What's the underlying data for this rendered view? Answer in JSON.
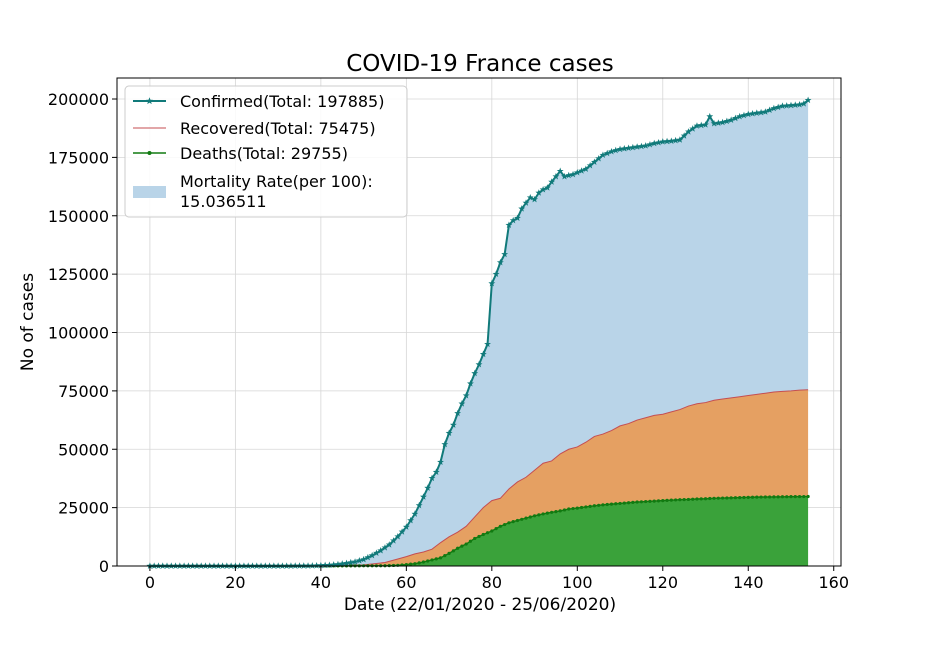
{
  "chart_data": {
    "type": "area",
    "title": "COVID-19 France cases",
    "xlabel": "Date (22/01/2020 - 25/06/2020)",
    "ylabel": "No of cases",
    "xlim": [
      -7.7,
      161.7
    ],
    "ylim": [
      0,
      209000
    ],
    "xticks": [
      0,
      20,
      40,
      60,
      80,
      100,
      120,
      140,
      160
    ],
    "yticks": [
      0,
      25000,
      50000,
      75000,
      100000,
      125000,
      150000,
      175000,
      200000
    ],
    "grid": true,
    "legend_position": "upper-left",
    "series": [
      {
        "key": "confirmed",
        "name": "Confirmed(Total: 197885)",
        "color": "#117a7a",
        "style": "line-star-markers",
        "fill": "#b9d4e8",
        "points": [
          [
            0,
            0
          ],
          [
            10,
            0
          ],
          [
            20,
            0
          ],
          [
            30,
            0
          ],
          [
            38,
            100
          ],
          [
            42,
            400
          ],
          [
            44,
            700
          ],
          [
            46,
            1200
          ],
          [
            48,
            1800
          ],
          [
            50,
            2800
          ],
          [
            52,
            4500
          ],
          [
            54,
            6600
          ],
          [
            56,
            9100
          ],
          [
            58,
            12600
          ],
          [
            60,
            16700
          ],
          [
            62,
            22300
          ],
          [
            64,
            29600
          ],
          [
            65,
            33400
          ],
          [
            66,
            37600
          ],
          [
            67,
            40200
          ],
          [
            68,
            44500
          ],
          [
            69,
            52100
          ],
          [
            70,
            56900
          ],
          [
            71,
            60400
          ],
          [
            72,
            65400
          ],
          [
            73,
            69500
          ],
          [
            74,
            73000
          ],
          [
            75,
            78100
          ],
          [
            76,
            82500
          ],
          [
            77,
            86300
          ],
          [
            78,
            90700
          ],
          [
            79,
            95000
          ],
          [
            80,
            121000
          ],
          [
            81,
            125000
          ],
          [
            82,
            130000
          ],
          [
            83,
            133500
          ],
          [
            84,
            146000
          ],
          [
            85,
            148000
          ],
          [
            86,
            149000
          ],
          [
            87,
            153000
          ],
          [
            88,
            155500
          ],
          [
            89,
            157800
          ],
          [
            90,
            157000
          ],
          [
            91,
            159800
          ],
          [
            92,
            161200
          ],
          [
            93,
            162000
          ],
          [
            94,
            164500
          ],
          [
            95,
            166800
          ],
          [
            96,
            169100
          ],
          [
            97,
            166800
          ],
          [
            98,
            167300
          ],
          [
            99,
            167700
          ],
          [
            100,
            168500
          ],
          [
            102,
            170000
          ],
          [
            104,
            173000
          ],
          [
            106,
            176000
          ],
          [
            108,
            177500
          ],
          [
            110,
            178500
          ],
          [
            112,
            179000
          ],
          [
            114,
            179500
          ],
          [
            116,
            180000
          ],
          [
            118,
            181000
          ],
          [
            120,
            181700
          ],
          [
            122,
            182000
          ],
          [
            124,
            182500
          ],
          [
            126,
            186000
          ],
          [
            128,
            188500
          ],
          [
            130,
            189000
          ],
          [
            131,
            192500
          ],
          [
            132,
            189500
          ],
          [
            134,
            190000
          ],
          [
            136,
            191000
          ],
          [
            138,
            192500
          ],
          [
            140,
            193500
          ],
          [
            142,
            194000
          ],
          [
            144,
            194500
          ],
          [
            146,
            196000
          ],
          [
            148,
            197000
          ],
          [
            150,
            197300
          ],
          [
            152,
            197600
          ],
          [
            153,
            198000
          ],
          [
            154,
            199500
          ]
        ]
      },
      {
        "key": "recovered",
        "name": "Recovered(Total: 75475)",
        "color": "#c44e52",
        "style": "thin-line",
        "fill": "#e5a062",
        "points": [
          [
            0,
            0
          ],
          [
            30,
            0
          ],
          [
            50,
            500
          ],
          [
            55,
            1500
          ],
          [
            58,
            3000
          ],
          [
            60,
            4000
          ],
          [
            62,
            5200
          ],
          [
            64,
            6000
          ],
          [
            66,
            7200
          ],
          [
            68,
            10000
          ],
          [
            70,
            12500
          ],
          [
            72,
            14500
          ],
          [
            74,
            17000
          ],
          [
            76,
            21000
          ],
          [
            78,
            25000
          ],
          [
            80,
            28000
          ],
          [
            82,
            29000
          ],
          [
            84,
            33000
          ],
          [
            86,
            36000
          ],
          [
            88,
            38000
          ],
          [
            90,
            41000
          ],
          [
            92,
            44000
          ],
          [
            94,
            45000
          ],
          [
            96,
            48000
          ],
          [
            98,
            50000
          ],
          [
            100,
            51000
          ],
          [
            102,
            53000
          ],
          [
            104,
            55500
          ],
          [
            106,
            56500
          ],
          [
            108,
            58000
          ],
          [
            110,
            60000
          ],
          [
            112,
            61000
          ],
          [
            114,
            62500
          ],
          [
            116,
            63500
          ],
          [
            118,
            64500
          ],
          [
            120,
            65000
          ],
          [
            122,
            66000
          ],
          [
            124,
            67000
          ],
          [
            126,
            68500
          ],
          [
            128,
            69500
          ],
          [
            130,
            70000
          ],
          [
            132,
            71000
          ],
          [
            134,
            71500
          ],
          [
            136,
            72000
          ],
          [
            138,
            72500
          ],
          [
            140,
            73000
          ],
          [
            142,
            73500
          ],
          [
            144,
            74000
          ],
          [
            146,
            74500
          ],
          [
            148,
            74800
          ],
          [
            150,
            75000
          ],
          [
            152,
            75300
          ],
          [
            154,
            75500
          ]
        ]
      },
      {
        "key": "deaths",
        "name": "Deaths(Total: 29755)",
        "color": "#117a11",
        "style": "line-dot-markers",
        "fill": "#3aa23a",
        "points": [
          [
            0,
            0
          ],
          [
            30,
            0
          ],
          [
            55,
            100
          ],
          [
            58,
            300
          ],
          [
            60,
            600
          ],
          [
            62,
            1000
          ],
          [
            64,
            1700
          ],
          [
            66,
            2600
          ],
          [
            68,
            3500
          ],
          [
            70,
            5400
          ],
          [
            72,
            7600
          ],
          [
            74,
            9400
          ],
          [
            76,
            11800
          ],
          [
            78,
            13500
          ],
          [
            80,
            15000
          ],
          [
            82,
            17000
          ],
          [
            84,
            18500
          ],
          [
            86,
            19500
          ],
          [
            88,
            20500
          ],
          [
            90,
            21500
          ],
          [
            92,
            22300
          ],
          [
            94,
            23000
          ],
          [
            96,
            23600
          ],
          [
            98,
            24400
          ],
          [
            100,
            24800
          ],
          [
            102,
            25300
          ],
          [
            104,
            25800
          ],
          [
            106,
            26200
          ],
          [
            108,
            26500
          ],
          [
            110,
            26800
          ],
          [
            112,
            27100
          ],
          [
            114,
            27400
          ],
          [
            116,
            27600
          ],
          [
            118,
            27800
          ],
          [
            120,
            28000
          ],
          [
            122,
            28200
          ],
          [
            124,
            28400
          ],
          [
            126,
            28500
          ],
          [
            128,
            28700
          ],
          [
            130,
            28800
          ],
          [
            132,
            29000
          ],
          [
            134,
            29100
          ],
          [
            136,
            29200
          ],
          [
            138,
            29300
          ],
          [
            140,
            29400
          ],
          [
            142,
            29500
          ],
          [
            144,
            29550
          ],
          [
            146,
            29600
          ],
          [
            148,
            29650
          ],
          [
            150,
            29700
          ],
          [
            152,
            29730
          ],
          [
            154,
            29755
          ]
        ]
      }
    ],
    "legend": [
      {
        "kind": "line-star",
        "color": "#117a7a",
        "text": "Confirmed(Total: 197885)"
      },
      {
        "kind": "thin-line",
        "color": "#c44e52",
        "text": "Recovered(Total: 75475)"
      },
      {
        "kind": "line-dot",
        "color": "#117a11",
        "text": "Deaths(Total: 29755)"
      },
      {
        "kind": "patch",
        "color": "#b9d4e8",
        "text": "Mortality Rate(per 100):",
        "text2": " 15.036511"
      }
    ]
  }
}
